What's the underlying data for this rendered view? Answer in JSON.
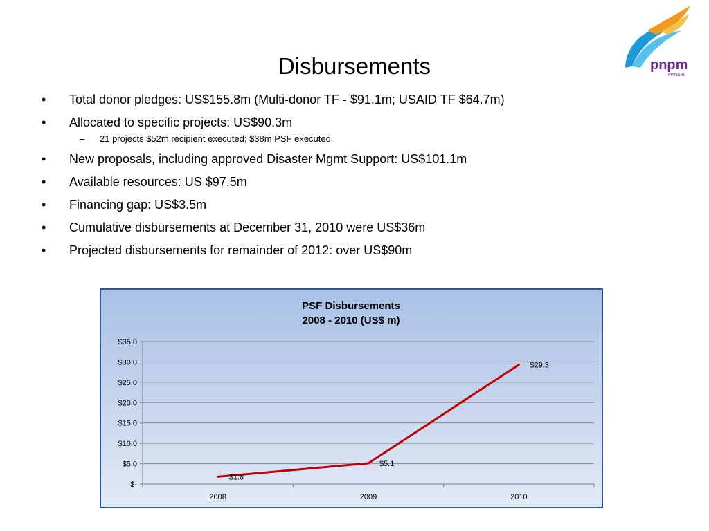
{
  "slide": {
    "title": "Disbursements",
    "bullet_symbol": "•",
    "sub_bullet_symbol": "–",
    "bullets": [
      {
        "text": "Total donor pledges:  US$155.8m  (Multi-donor TF - $91.1m;  USAID TF $64.7m)"
      },
      {
        "text": "Allocated to specific projects: US$90.3m"
      },
      {
        "text": "21 projects $52m recipient executed; $38m PSF executed.",
        "level": 2
      },
      {
        "text": "New proposals, including approved Disaster Mgmt Support:  US$101.1m"
      },
      {
        "text": "Available resources: US $97.5m"
      },
      {
        "text": "Financing gap: US$3.5m"
      },
      {
        "text": "Cumulative  disbursements at December 31, 2010 were US$36m"
      },
      {
        "text": "Projected disbursements for remainder of 2012: over US$90m"
      }
    ]
  },
  "logo": {
    "brand_text": "pnpm",
    "sub_text": "MANDIRI",
    "colors": [
      "#1f9ad6",
      "#f29a1f",
      "#6c2a86"
    ]
  },
  "chart_data": {
    "type": "line",
    "title": "PSF Disbursements",
    "subtitle": "2008 - 2010 (US$ m)",
    "categories": [
      "2008",
      "2009",
      "2010"
    ],
    "series": [
      {
        "values": [
          1.8,
          5.1,
          29.3
        ],
        "labels": [
          "$1.8",
          "$5.1",
          "$29.3"
        ],
        "color": "#c00000"
      }
    ],
    "ylim": [
      0,
      35
    ],
    "y_ticks": [
      {
        "value": 0,
        "label": "$-"
      },
      {
        "value": 5,
        "label": "$5.0"
      },
      {
        "value": 10,
        "label": "$10.0"
      },
      {
        "value": 15,
        "label": "$15.0"
      },
      {
        "value": 20,
        "label": "$20.0"
      },
      {
        "value": 25,
        "label": "$25.0"
      },
      {
        "value": 30,
        "label": "$30.0"
      },
      {
        "value": 35,
        "label": "$35.0"
      }
    ],
    "grid": true,
    "legend": "none",
    "xlabel": "",
    "ylabel": ""
  }
}
